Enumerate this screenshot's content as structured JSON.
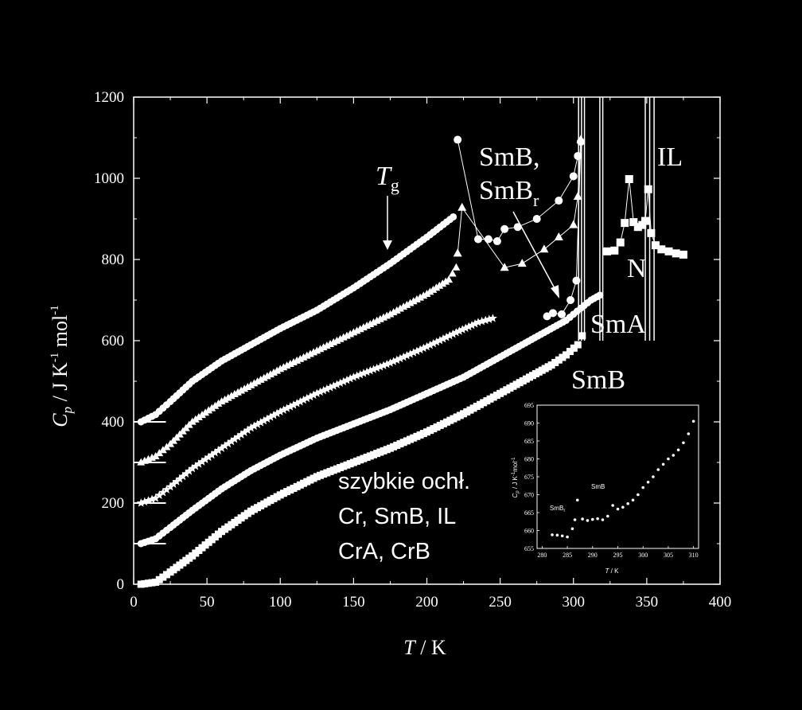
{
  "chart_data": {
    "type": "scatter",
    "xlabel": {
      "symbol": "T",
      "unit": " / K"
    },
    "ylabel": {
      "symbol": "C",
      "sub": "p",
      "unit_a": " / J K",
      "sup_a": "-1",
      "unit_b": " mol",
      "sup_b": "-1"
    },
    "xlim": [
      0,
      400
    ],
    "ylim": [
      0,
      1200
    ],
    "xticks": [
      0,
      50,
      100,
      150,
      200,
      250,
      300,
      350,
      400
    ],
    "yticks": [
      0,
      200,
      400,
      600,
      800,
      1000,
      1200
    ],
    "offset_markers": [
      100,
      200,
      300,
      400
    ],
    "series": [
      {
        "marker": "square",
        "offset": 0,
        "points": [
          [
            5,
            0
          ],
          [
            15,
            5
          ],
          [
            25,
            30
          ],
          [
            40,
            70
          ],
          [
            60,
            130
          ],
          [
            80,
            180
          ],
          [
            100,
            220
          ],
          [
            125,
            265
          ],
          [
            150,
            300
          ],
          [
            175,
            335
          ],
          [
            200,
            375
          ],
          [
            225,
            420
          ],
          [
            250,
            470
          ],
          [
            270,
            510
          ],
          [
            285,
            540
          ],
          [
            295,
            565
          ],
          [
            303,
            590
          ],
          [
            306,
            612
          ]
        ],
        "extra": [
          [
            323,
            820
          ],
          [
            328,
            822
          ],
          [
            332,
            842
          ],
          [
            335,
            890
          ],
          [
            338,
            998
          ],
          [
            341,
            892
          ],
          [
            344,
            880
          ],
          [
            347,
            885
          ],
          [
            349,
            895
          ],
          [
            351,
            973
          ],
          [
            353,
            865
          ],
          [
            356,
            835
          ],
          [
            360,
            825
          ],
          [
            365,
            820
          ],
          [
            370,
            815
          ],
          [
            375,
            812
          ]
        ]
      },
      {
        "marker": "circle",
        "offset": 100,
        "points": [
          [
            5,
            100
          ],
          [
            15,
            112
          ],
          [
            25,
            140
          ],
          [
            40,
            182
          ],
          [
            60,
            235
          ],
          [
            80,
            280
          ],
          [
            100,
            318
          ],
          [
            125,
            360
          ],
          [
            150,
            395
          ],
          [
            175,
            430
          ],
          [
            200,
            470
          ],
          [
            225,
            510
          ],
          [
            250,
            560
          ],
          [
            265,
            590
          ],
          [
            280,
            620
          ],
          [
            295,
            650
          ],
          [
            305,
            680
          ],
          [
            312,
            700
          ],
          [
            318,
            712
          ]
        ],
        "extra": [
          [
            282,
            660
          ],
          [
            286,
            668
          ],
          [
            292,
            665
          ],
          [
            298,
            700
          ],
          [
            302,
            748
          ],
          [
            305,
            1090
          ]
        ]
      },
      {
        "marker": "star",
        "offset": 200,
        "points": [
          [
            5,
            200
          ],
          [
            15,
            212
          ],
          [
            25,
            240
          ],
          [
            40,
            285
          ],
          [
            60,
            335
          ],
          [
            80,
            385
          ],
          [
            100,
            425
          ],
          [
            125,
            470
          ],
          [
            150,
            510
          ],
          [
            175,
            545
          ],
          [
            200,
            585
          ],
          [
            220,
            620
          ],
          [
            235,
            645
          ],
          [
            245,
            655
          ]
        ]
      },
      {
        "marker": "triangle",
        "offset": 300,
        "points": [
          [
            5,
            300
          ],
          [
            15,
            315
          ],
          [
            25,
            345
          ],
          [
            40,
            400
          ],
          [
            60,
            450
          ],
          [
            80,
            490
          ],
          [
            100,
            530
          ],
          [
            125,
            575
          ],
          [
            150,
            620
          ],
          [
            175,
            665
          ],
          [
            200,
            715
          ],
          [
            215,
            750
          ],
          [
            220,
            780
          ]
        ],
        "extra": [
          [
            221,
            815
          ],
          [
            224,
            928
          ],
          [
            253,
            780
          ],
          [
            265,
            790
          ],
          [
            280,
            825
          ],
          [
            290,
            855
          ],
          [
            300,
            885
          ],
          [
            303,
            955
          ],
          [
            305,
            1095
          ]
        ]
      },
      {
        "marker": "circle",
        "offset": 400,
        "points": [
          [
            5,
            400
          ],
          [
            15,
            418
          ],
          [
            25,
            450
          ],
          [
            40,
            500
          ],
          [
            60,
            550
          ],
          [
            80,
            590
          ],
          [
            100,
            630
          ],
          [
            125,
            675
          ],
          [
            150,
            730
          ],
          [
            175,
            790
          ],
          [
            200,
            855
          ],
          [
            218,
            905
          ]
        ],
        "extra": [
          [
            221,
            1095
          ],
          [
            235,
            850
          ],
          [
            242,
            850
          ],
          [
            248,
            845
          ],
          [
            253,
            875
          ],
          [
            262,
            880
          ],
          [
            275,
            900
          ],
          [
            290,
            945
          ],
          [
            300,
            1005
          ],
          [
            303,
            1055
          ]
        ]
      }
    ],
    "spikes": [
      {
        "x": [
          303.5,
          305.5,
          307.5
        ],
        "ymax": 1200
      },
      {
        "x": [
          318,
          320
        ],
        "ymax": 1200
      },
      {
        "x": [
          349,
          352,
          355
        ],
        "ymax": 1200
      }
    ],
    "annotations": {
      "tg_symbol": "T",
      "tg_sub": "g",
      "smb_top": "SmB,",
      "smbr_main": "SmB",
      "smbr_sub": "r",
      "il": "IL",
      "n": "N",
      "sma": "SmA",
      "smb_low": "SmB"
    },
    "note_lines": [
      "szybkie ochł.",
      "Cr, SmB, IL",
      "CrA, CrB"
    ],
    "inset": {
      "xlim": [
        279,
        311
      ],
      "ylim": [
        655,
        695
      ],
      "xticks": [
        280,
        285,
        290,
        295,
        300,
        305,
        310
      ],
      "yticks": [
        655,
        660,
        665,
        670,
        675,
        680,
        685,
        690,
        695
      ],
      "xlabel": {
        "symbol": "T",
        "unit": " / K"
      },
      "ylabel": {
        "symbol": "C",
        "sub": "p",
        "unit": " / J K",
        "sup": "-1",
        "unit_b": "mol",
        "sup_b": "-1"
      },
      "labels": {
        "smbr_main": "SmB",
        "smbr_sub": "r",
        "smb": "SmB"
      },
      "points": [
        [
          282,
          658.8
        ],
        [
          283,
          658.7
        ],
        [
          284,
          658.5
        ],
        [
          285,
          658.2
        ],
        [
          286,
          660.5
        ],
        [
          286.5,
          663
        ],
        [
          287,
          668.5
        ],
        [
          288,
          663.2
        ],
        [
          289,
          662.8
        ],
        [
          290,
          663.1
        ],
        [
          291,
          663.3
        ],
        [
          292,
          663
        ],
        [
          293,
          664
        ],
        [
          294,
          667
        ],
        [
          295,
          666
        ],
        [
          296,
          666.5
        ],
        [
          297,
          667.5
        ],
        [
          298,
          668.5
        ],
        [
          299,
          670
        ],
        [
          300,
          672
        ],
        [
          301,
          673.5
        ],
        [
          302,
          675
        ],
        [
          303,
          677
        ],
        [
          304,
          678.5
        ],
        [
          305,
          680
        ],
        [
          306,
          681
        ],
        [
          307,
          682.5
        ],
        [
          308,
          684.5
        ],
        [
          309,
          687
        ],
        [
          310,
          690.5
        ]
      ]
    }
  }
}
